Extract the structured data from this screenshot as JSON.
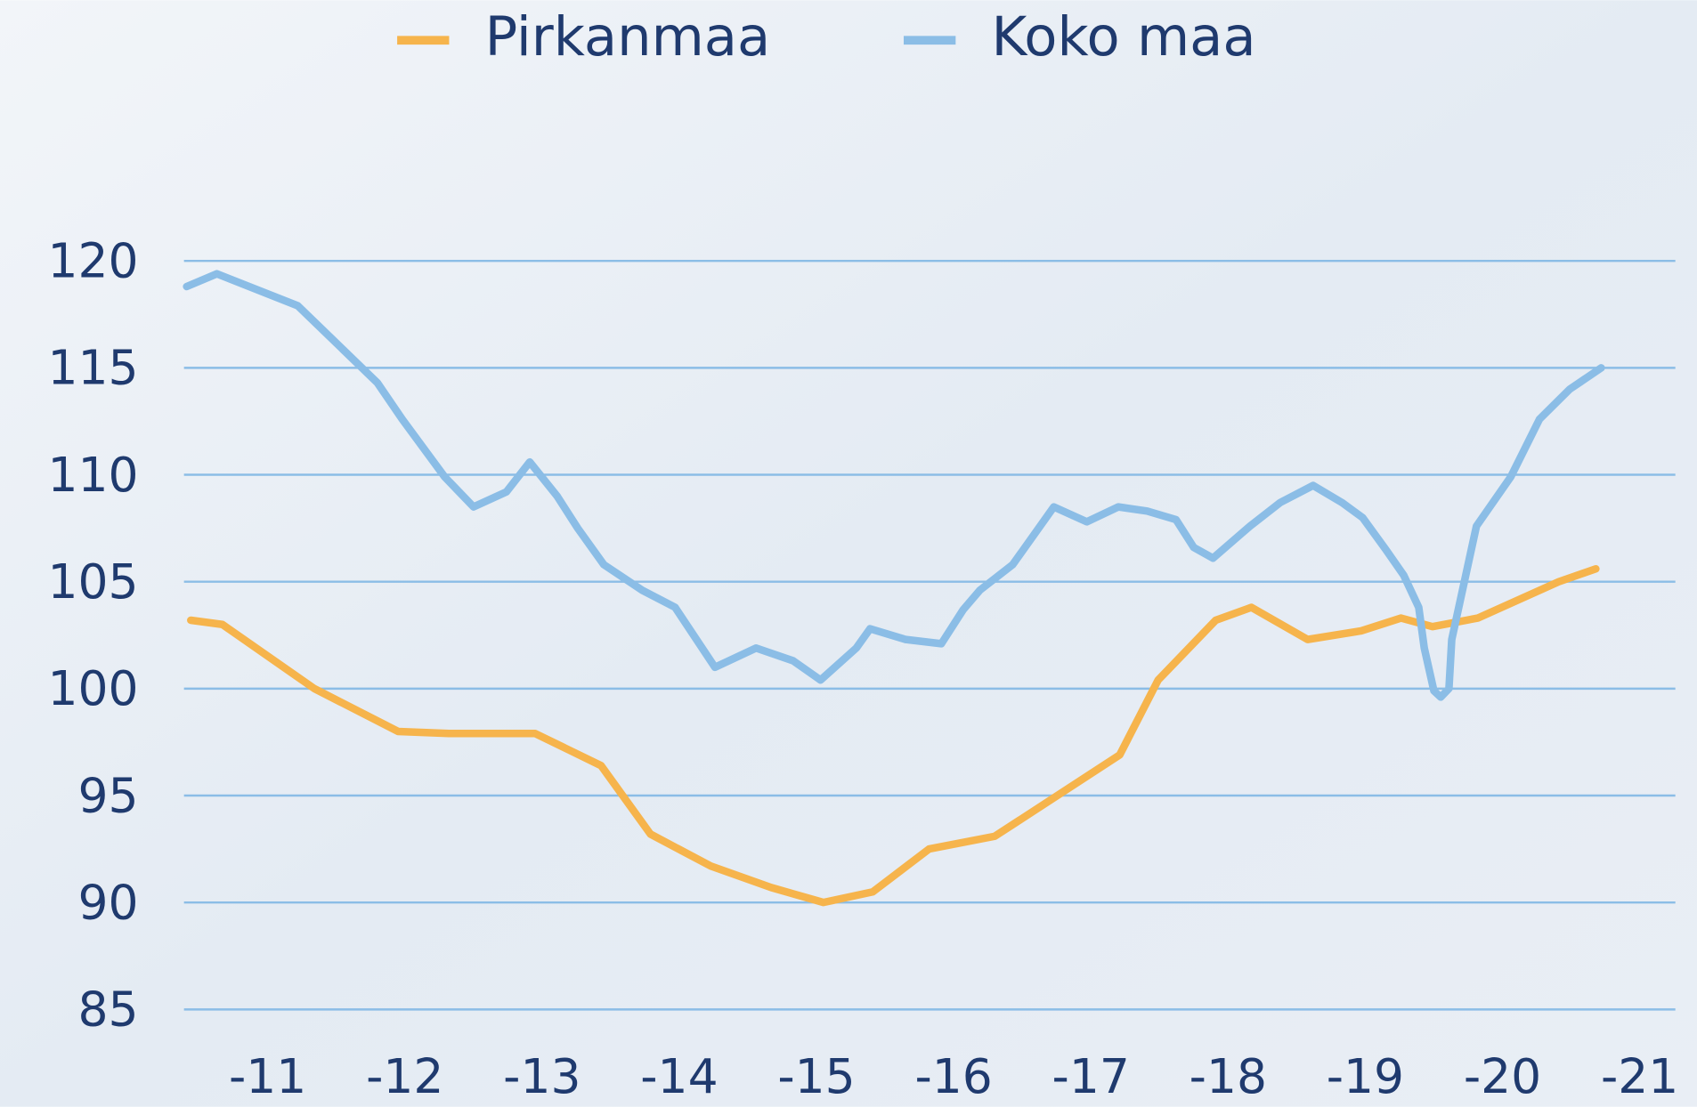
{
  "chart_data": {
    "type": "line",
    "legend": "top",
    "grid": true,
    "xlim": [
      10.39,
      21.26
    ],
    "ylim": [
      85,
      120
    ],
    "yticks": [
      85,
      90,
      95,
      100,
      105,
      110,
      115,
      120
    ],
    "xticks": [
      {
        "value": 11,
        "label": "-11"
      },
      {
        "value": 12,
        "label": "-12"
      },
      {
        "value": 13,
        "label": "-13"
      },
      {
        "value": 14,
        "label": "-14"
      },
      {
        "value": 15,
        "label": "-15"
      },
      {
        "value": 16,
        "label": "-16"
      },
      {
        "value": 17,
        "label": "-17"
      },
      {
        "value": 18,
        "label": "-18"
      },
      {
        "value": 19,
        "label": "-19"
      },
      {
        "value": 20,
        "label": "-20"
      },
      {
        "value": 21,
        "label": "-21"
      }
    ],
    "series": [
      {
        "name": "Pirkanmaa",
        "color": "#f6b44c",
        "x": [
          10.44,
          10.67,
          11.34,
          11.95,
          12.32,
          12.95,
          13.43,
          13.79,
          14.23,
          14.67,
          15.05,
          15.41,
          15.82,
          16.3,
          17.21,
          17.49,
          17.91,
          18.17,
          18.58,
          18.97,
          19.26,
          19.49,
          19.82,
          20.41,
          20.68
        ],
        "values": [
          103.2,
          103.0,
          100.0,
          98.0,
          97.9,
          97.9,
          96.4,
          93.2,
          91.7,
          90.7,
          90.0,
          90.5,
          92.5,
          93.1,
          96.9,
          100.4,
          103.2,
          103.8,
          102.3,
          102.7,
          103.3,
          102.9,
          103.3,
          105.0,
          105.6
        ]
      },
      {
        "name": "Koko maa",
        "color": "#8bbde6",
        "x": [
          10.41,
          10.63,
          11.22,
          11.8,
          11.98,
          12.29,
          12.5,
          12.74,
          12.91,
          13.11,
          13.26,
          13.45,
          13.73,
          13.97,
          14.26,
          14.56,
          14.83,
          15.03,
          15.29,
          15.39,
          15.65,
          15.91,
          16.07,
          16.19,
          16.43,
          16.73,
          16.97,
          17.2,
          17.41,
          17.62,
          17.75,
          17.89,
          18.16,
          18.38,
          18.62,
          18.83,
          18.98,
          19.15,
          19.28,
          19.39,
          19.43,
          19.5,
          19.55,
          19.61,
          19.63,
          19.81,
          20.06,
          20.27,
          20.49,
          20.72
        ],
        "values": [
          118.8,
          119.4,
          117.9,
          114.3,
          112.6,
          109.9,
          108.5,
          109.2,
          110.6,
          109.0,
          107.5,
          105.8,
          104.6,
          103.8,
          101.0,
          101.9,
          101.3,
          100.4,
          101.9,
          102.8,
          102.3,
          102.1,
          103.7,
          104.6,
          105.8,
          108.5,
          107.8,
          108.5,
          108.3,
          107.9,
          106.6,
          106.1,
          107.6,
          108.7,
          109.5,
          108.7,
          108.0,
          106.5,
          105.3,
          103.8,
          101.9,
          99.9,
          99.6,
          100.0,
          102.3,
          107.6,
          109.9,
          112.6,
          114.0,
          115.0
        ]
      }
    ]
  }
}
